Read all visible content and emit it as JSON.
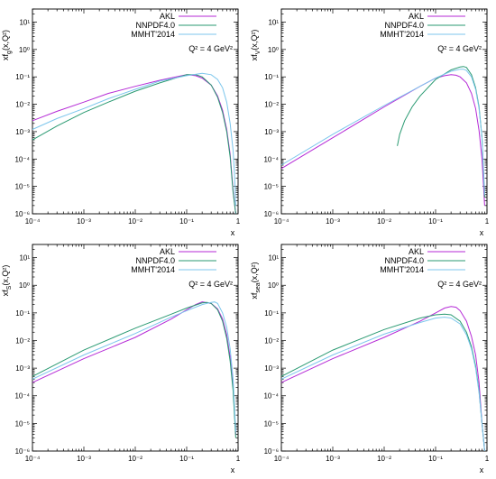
{
  "annotation": "Q² = 4 GeV²",
  "colors": {
    "AKL": "#b52ad6",
    "NNPDF4.0": "#2a9a72",
    "MMHT'2014": "#7cc6ec"
  },
  "chart_data": [
    {
      "type": "line",
      "ylabel": "xf_g(x,Q²)",
      "xlabel": "x",
      "xscale": "log",
      "yscale": "log",
      "xlim": [
        0.0001,
        1
      ],
      "ylim": [
        1e-06,
        30
      ],
      "xticks": [
        "10⁻⁴",
        "10⁻³",
        "10⁻²",
        "10⁻¹",
        "1"
      ],
      "yticks": [
        "10¹",
        "10⁰",
        "10⁻¹",
        "10⁻²",
        "10⁻³",
        "10⁻⁴",
        "10⁻⁵",
        "10⁻⁶"
      ],
      "legend": "top-right",
      "series": [
        {
          "name": "AKL",
          "color": "#b52ad6",
          "x": [
            0.0001,
            0.0003,
            0.001,
            0.003,
            0.01,
            0.03,
            0.1,
            0.15,
            0.2,
            0.3,
            0.4,
            0.5,
            0.6,
            0.7,
            0.8,
            0.9
          ],
          "y": [
            0.0025,
            0.0055,
            0.012,
            0.025,
            0.045,
            0.075,
            0.12,
            0.11,
            0.09,
            0.05,
            0.02,
            0.006,
            0.0012,
            0.00015,
            7e-06,
            1e-06
          ]
        },
        {
          "name": "NNPDF4.0",
          "color": "#2a9a72",
          "x": [
            0.0001,
            0.0003,
            0.001,
            0.003,
            0.01,
            0.03,
            0.1,
            0.15,
            0.2,
            0.3,
            0.4,
            0.5,
            0.6,
            0.7,
            0.8,
            0.9
          ],
          "y": [
            0.0005,
            0.0016,
            0.005,
            0.012,
            0.03,
            0.06,
            0.12,
            0.12,
            0.1,
            0.05,
            0.018,
            0.005,
            0.001,
            0.00012,
            6e-06,
            1e-06
          ]
        },
        {
          "name": "MMHT'2014",
          "color": "#7cc6ec",
          "x": [
            0.0001,
            0.0003,
            0.001,
            0.003,
            0.01,
            0.03,
            0.1,
            0.2,
            0.3,
            0.4,
            0.5,
            0.6,
            0.7,
            0.8,
            0.85,
            0.9
          ],
          "y": [
            0.0012,
            0.003,
            0.007,
            0.016,
            0.035,
            0.07,
            0.11,
            0.135,
            0.12,
            0.08,
            0.04,
            0.012,
            0.002,
            0.0002,
            3e-05,
            2e-06
          ]
        }
      ]
    },
    {
      "type": "line",
      "ylabel": "xf_V(x,Q²)",
      "xlabel": "x",
      "xscale": "log",
      "yscale": "log",
      "xlim": [
        0.0001,
        1
      ],
      "ylim": [
        1e-06,
        30
      ],
      "xticks": [
        "10⁻⁴",
        "10⁻³",
        "10⁻²",
        "10⁻¹",
        "1"
      ],
      "yticks": [
        "10¹",
        "10⁰",
        "10⁻¹",
        "10⁻²",
        "10⁻³",
        "10⁻⁴",
        "10⁻⁵",
        "10⁻⁶"
      ],
      "legend": "top-right",
      "series": [
        {
          "name": "AKL",
          "color": "#b52ad6",
          "x": [
            0.0001,
            0.001,
            0.01,
            0.05,
            0.1,
            0.15,
            0.2,
            0.25,
            0.3,
            0.4,
            0.5,
            0.6,
            0.7,
            0.8,
            0.9
          ],
          "y": [
            4.5e-05,
            0.0006,
            0.008,
            0.045,
            0.09,
            0.11,
            0.12,
            0.115,
            0.1,
            0.06,
            0.025,
            0.007,
            0.0011,
            0.0001,
            2e-06
          ]
        },
        {
          "name": "NNPDF4.0",
          "color": "#2a9a72",
          "x": [
            0.018,
            0.02,
            0.025,
            0.035,
            0.05,
            0.1,
            0.2,
            0.3,
            0.35,
            0.4,
            0.5,
            0.6,
            0.7,
            0.8,
            0.9
          ],
          "y": [
            0.0003,
            0.0008,
            0.0025,
            0.008,
            0.02,
            0.08,
            0.18,
            0.23,
            0.24,
            0.22,
            0.12,
            0.04,
            0.008,
            0.0006,
            4e-06
          ]
        },
        {
          "name": "MMHT'2014",
          "color": "#7cc6ec",
          "x": [
            0.0001,
            0.001,
            0.01,
            0.05,
            0.1,
            0.2,
            0.3,
            0.35,
            0.4,
            0.5,
            0.6,
            0.7,
            0.8,
            0.9
          ],
          "y": [
            6e-05,
            0.0008,
            0.009,
            0.045,
            0.09,
            0.16,
            0.19,
            0.19,
            0.17,
            0.1,
            0.035,
            0.007,
            0.0006,
            5e-06
          ]
        }
      ]
    },
    {
      "type": "line",
      "ylabel": "xf_S(x,Q²)",
      "xlabel": "x",
      "xscale": "log",
      "yscale": "log",
      "xlim": [
        0.0001,
        1
      ],
      "ylim": [
        1e-06,
        30
      ],
      "xticks": [
        "10⁻⁴",
        "10⁻³",
        "10⁻²",
        "10⁻¹",
        "1"
      ],
      "yticks": [
        "10¹",
        "10⁰",
        "10⁻¹",
        "10⁻²",
        "10⁻³",
        "10⁻⁴",
        "10⁻⁵",
        "10⁻⁶"
      ],
      "legend": "top-right",
      "series": [
        {
          "name": "AKL",
          "color": "#b52ad6",
          "x": [
            0.0001,
            0.001,
            0.01,
            0.05,
            0.1,
            0.15,
            0.2,
            0.3,
            0.4,
            0.5,
            0.6,
            0.7,
            0.8,
            0.9
          ],
          "y": [
            0.0003,
            0.0022,
            0.013,
            0.06,
            0.13,
            0.2,
            0.25,
            0.22,
            0.14,
            0.06,
            0.016,
            0.0025,
            0.0002,
            4e-06
          ]
        },
        {
          "name": "NNPDF4.0",
          "color": "#2a9a72",
          "x": [
            0.0001,
            0.001,
            0.01,
            0.05,
            0.1,
            0.2,
            0.25,
            0.3,
            0.4,
            0.5,
            0.6,
            0.7,
            0.8,
            0.9
          ],
          "y": [
            0.0005,
            0.0045,
            0.028,
            0.09,
            0.15,
            0.23,
            0.24,
            0.22,
            0.13,
            0.05,
            0.012,
            0.0018,
            0.00015,
            3e-06
          ]
        },
        {
          "name": "MMHT'2014",
          "color": "#7cc6ec",
          "x": [
            0.0001,
            0.001,
            0.01,
            0.05,
            0.1,
            0.2,
            0.3,
            0.35,
            0.4,
            0.5,
            0.6,
            0.7,
            0.8,
            0.9
          ],
          "y": [
            0.0004,
            0.003,
            0.018,
            0.07,
            0.12,
            0.2,
            0.24,
            0.25,
            0.22,
            0.1,
            0.03,
            0.005,
            0.0004,
            5e-06
          ]
        }
      ]
    },
    {
      "type": "line",
      "ylabel": "xf_sea(x,Q²)",
      "xlabel": "x",
      "xscale": "log",
      "yscale": "log",
      "xlim": [
        0.0001,
        1
      ],
      "ylim": [
        1e-06,
        30
      ],
      "xticks": [
        "10⁻⁴",
        "10⁻³",
        "10⁻²",
        "10⁻¹",
        "1"
      ],
      "yticks": [
        "10¹",
        "10⁰",
        "10⁻¹",
        "10⁻²",
        "10⁻³",
        "10⁻⁴",
        "10⁻⁵",
        "10⁻⁶"
      ],
      "legend": "top-right",
      "series": [
        {
          "name": "AKL",
          "color": "#b52ad6",
          "x": [
            0.0001,
            0.001,
            0.01,
            0.05,
            0.1,
            0.15,
            0.2,
            0.25,
            0.3,
            0.4,
            0.5,
            0.6,
            0.7,
            0.8,
            0.9
          ],
          "y": [
            0.0003,
            0.0022,
            0.013,
            0.05,
            0.1,
            0.15,
            0.17,
            0.16,
            0.12,
            0.05,
            0.014,
            0.003,
            0.0003,
            1e-05,
            1e-06
          ]
        },
        {
          "name": "NNPDF4.0",
          "color": "#2a9a72",
          "x": [
            0.0001,
            0.001,
            0.01,
            0.05,
            0.1,
            0.15,
            0.2,
            0.3,
            0.4,
            0.5,
            0.6,
            0.7,
            0.8,
            0.9
          ],
          "y": [
            0.0005,
            0.0045,
            0.025,
            0.065,
            0.085,
            0.09,
            0.085,
            0.05,
            0.02,
            0.006,
            0.0012,
            0.00015,
            1e-05,
            1e-06
          ]
        },
        {
          "name": "MMHT'2014",
          "color": "#7cc6ec",
          "x": [
            0.0001,
            0.001,
            0.01,
            0.05,
            0.1,
            0.15,
            0.2,
            0.3,
            0.4,
            0.5,
            0.6,
            0.7,
            0.8,
            0.9
          ],
          "y": [
            0.0004,
            0.003,
            0.017,
            0.045,
            0.065,
            0.07,
            0.065,
            0.04,
            0.016,
            0.005,
            0.001,
            0.00013,
            1e-05,
            1e-06
          ]
        }
      ]
    }
  ]
}
